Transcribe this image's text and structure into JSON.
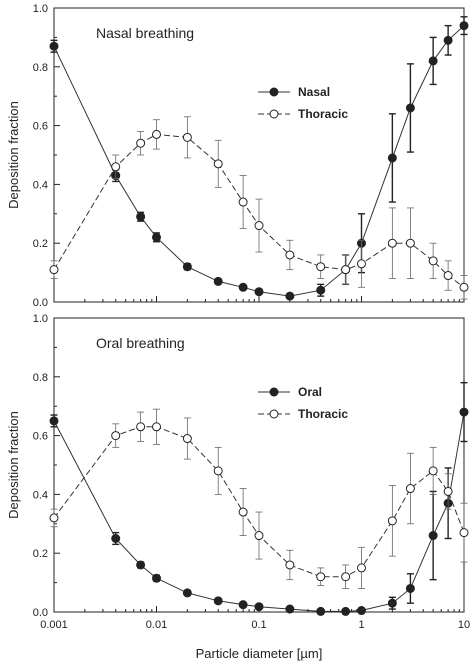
{
  "chart_data": [
    {
      "type": "line",
      "title": "Nasal breathing",
      "xlabel": "",
      "ylabel": "Deposition fraction",
      "xscale": "log",
      "xlim": [
        0.001,
        10
      ],
      "ylim": [
        0,
        1.0
      ],
      "yticks": [
        "0.0",
        "0.2",
        "0.4",
        "0.6",
        "0.8",
        "1.0"
      ],
      "xticks": [],
      "legend": "center-right",
      "series": [
        {
          "name": "Nasal",
          "marker": "filled-circle",
          "line": "solid",
          "x": [
            0.001,
            0.004,
            0.007,
            0.01,
            0.02,
            0.04,
            0.07,
            0.1,
            0.2,
            0.4,
            0.7,
            1,
            2,
            3,
            5,
            7,
            10
          ],
          "y": [
            0.87,
            0.43,
            0.29,
            0.22,
            0.12,
            0.07,
            0.05,
            0.035,
            0.02,
            0.04,
            0.11,
            0.2,
            0.49,
            0.66,
            0.82,
            0.89,
            0.94
          ],
          "err": [
            0.02,
            0.02,
            0.015,
            0.015,
            0.01,
            0.008,
            0.006,
            0.005,
            0.005,
            0.02,
            0.05,
            0.1,
            0.15,
            0.15,
            0.08,
            0.05,
            0.03
          ]
        },
        {
          "name": "Thoracic",
          "marker": "open-circle",
          "line": "dashed",
          "x": [
            0.001,
            0.004,
            0.007,
            0.01,
            0.02,
            0.04,
            0.07,
            0.1,
            0.2,
            0.4,
            0.7,
            1,
            2,
            3,
            5,
            7,
            10
          ],
          "y": [
            0.11,
            0.46,
            0.54,
            0.57,
            0.56,
            0.47,
            0.34,
            0.26,
            0.16,
            0.12,
            0.11,
            0.13,
            0.2,
            0.2,
            0.14,
            0.09,
            0.05
          ],
          "err": [
            0.03,
            0.04,
            0.04,
            0.05,
            0.07,
            0.08,
            0.09,
            0.09,
            0.05,
            0.04,
            0.05,
            0.08,
            0.12,
            0.12,
            0.06,
            0.05,
            0.04
          ]
        }
      ]
    },
    {
      "type": "line",
      "title": "Oral breathing",
      "xlabel": "Particle diameter [µm]",
      "ylabel": "Deposition fraction",
      "xscale": "log",
      "xlim": [
        0.001,
        10
      ],
      "ylim": [
        0,
        1.0
      ],
      "yticks": [
        "0.0",
        "0.2",
        "0.4",
        "0.6",
        "0.8",
        "1.0"
      ],
      "xticks": [
        "0.001",
        "0.01",
        "0.1",
        "1",
        "10"
      ],
      "legend": "center-right",
      "series": [
        {
          "name": "Oral",
          "marker": "filled-circle",
          "line": "solid",
          "x": [
            0.001,
            0.004,
            0.007,
            0.01,
            0.02,
            0.04,
            0.07,
            0.1,
            0.2,
            0.4,
            0.7,
            1,
            2,
            3,
            5,
            7,
            10
          ],
          "y": [
            0.65,
            0.25,
            0.16,
            0.115,
            0.065,
            0.038,
            0.025,
            0.018,
            0.01,
            0.002,
            0.002,
            0.005,
            0.03,
            0.08,
            0.26,
            0.37,
            0.68
          ],
          "err": [
            0.02,
            0.02,
            0.01,
            0.01,
            0.008,
            0.005,
            0.004,
            0.003,
            0.002,
            0.002,
            0.002,
            0.005,
            0.02,
            0.05,
            0.15,
            0.12,
            0.1
          ]
        },
        {
          "name": "Thoracic",
          "marker": "open-circle",
          "line": "dashed",
          "x": [
            0.001,
            0.004,
            0.007,
            0.01,
            0.02,
            0.04,
            0.07,
            0.1,
            0.2,
            0.4,
            0.7,
            1,
            2,
            3,
            5,
            7,
            10
          ],
          "y": [
            0.32,
            0.6,
            0.63,
            0.63,
            0.59,
            0.48,
            0.34,
            0.26,
            0.16,
            0.12,
            0.12,
            0.15,
            0.31,
            0.42,
            0.48,
            0.41,
            0.27
          ],
          "err": [
            0.03,
            0.04,
            0.05,
            0.06,
            0.07,
            0.08,
            0.08,
            0.08,
            0.05,
            0.03,
            0.04,
            0.07,
            0.12,
            0.12,
            0.08,
            0.06,
            0.1
          ]
        }
      ]
    }
  ]
}
